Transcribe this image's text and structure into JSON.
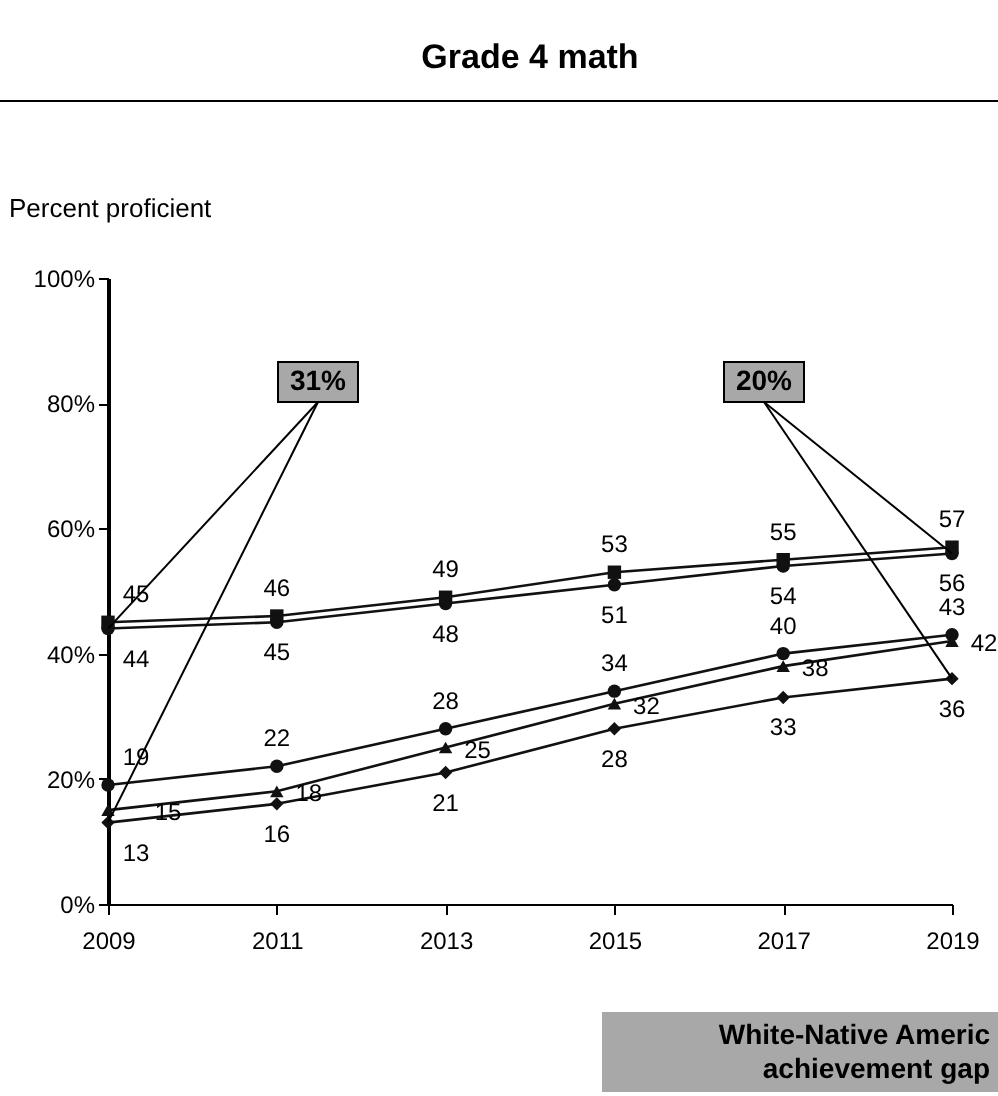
{
  "chart_data": {
    "type": "line",
    "title": "Grade 4 math",
    "ylabel": "Percent proficient",
    "categories": [
      "2009",
      "2011",
      "2013",
      "2015",
      "2017",
      "2019"
    ],
    "series": [
      {
        "color": "#111111",
        "marker": "square",
        "values": [
          45,
          46,
          49,
          53,
          55,
          57
        ]
      },
      {
        "color": "#111111",
        "marker": "circle",
        "values": [
          44,
          45,
          48,
          51,
          54,
          56
        ]
      },
      {
        "color": "#111111",
        "marker": "circle",
        "values": [
          19,
          22,
          28,
          34,
          40,
          43
        ]
      },
      {
        "color": "#111111",
        "marker": "triangle",
        "values": [
          15,
          18,
          25,
          32,
          38,
          42
        ]
      },
      {
        "color": "#111111",
        "marker": "diamond",
        "values": [
          13,
          16,
          21,
          28,
          33,
          36
        ]
      }
    ],
    "ylim": [
      0,
      100
    ],
    "yticks": [
      {
        "value": 0,
        "label": "0%"
      },
      {
        "value": 20,
        "label": "20%"
      },
      {
        "value": 40,
        "label": "40%"
      },
      {
        "value": 60,
        "label": "60%"
      },
      {
        "value": 80,
        "label": "80%"
      },
      {
        "value": 100,
        "label": "100%"
      }
    ],
    "grid": false,
    "legend": false,
    "data_labels": true,
    "annotations": [
      {
        "text": "31%",
        "x": "2009"
      },
      {
        "text": "20%",
        "x": "2019"
      },
      "White-Native Americ achievement gap"
    ]
  }
}
